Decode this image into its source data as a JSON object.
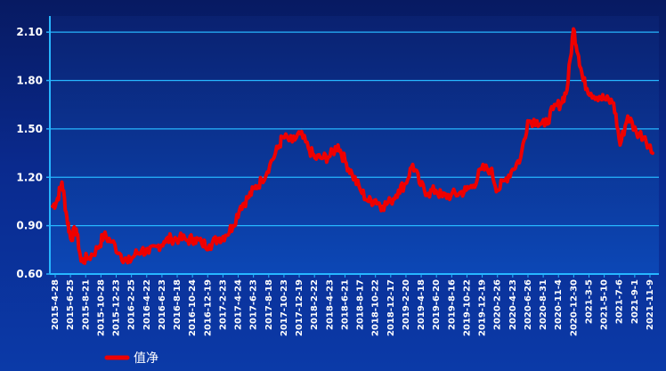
{
  "chart_data": {
    "type": "line",
    "title": "",
    "xlabel": "",
    "ylabel": "",
    "ylim": [
      0.6,
      2.2
    ],
    "y_ticks": [
      "0.60",
      "0.90",
      "1.20",
      "1.50",
      "1.80",
      "2.10"
    ],
    "y_tick_values": [
      0.6,
      0.9,
      1.2,
      1.5,
      1.8,
      2.1
    ],
    "grid": "horizontal",
    "legend": {
      "position": "bottom-left",
      "label": "值净"
    },
    "x_ticks": [
      "2015-4-28",
      "2015-6-25",
      "2015-8-21",
      "2015-10-28",
      "2015-12-23",
      "2016-2-25",
      "2016-4-22",
      "2016-6-23",
      "2016-8-18",
      "2016-10-24",
      "2016-12-19",
      "2017-2-23",
      "2017-4-24",
      "2017-6-23",
      "2017-8-18",
      "2017-10-23",
      "2017-12-19",
      "2018-2-22",
      "2018-4-23",
      "2018-6-21",
      "2018-8-17",
      "2018-10-22",
      "2018-12-17",
      "2019-2-20",
      "2019-4-18",
      "2019-6-20",
      "2019-8-16",
      "2019-10-22",
      "2019-12-19",
      "2020-2-26",
      "2020-4-23",
      "2020-6-26",
      "2020-8-31",
      "2020-11-4",
      "2020-12-30",
      "2021-3-5",
      "2021-5-10",
      "2021-7-6",
      "2021-9-1",
      "2021-11-9"
    ],
    "series": [
      {
        "name": "值净",
        "color": "#ee0000",
        "x": [
          "2015-4-28",
          "2015-5-15",
          "2015-6-5",
          "2015-6-25",
          "2015-7-10",
          "2015-8-1",
          "2015-8-21",
          "2015-9-20",
          "2015-10-28",
          "2015-11-20",
          "2015-12-23",
          "2016-1-28",
          "2016-2-25",
          "2016-3-25",
          "2016-4-22",
          "2016-5-20",
          "2016-6-23",
          "2016-7-20",
          "2016-8-18",
          "2016-9-20",
          "2016-10-24",
          "2016-11-20",
          "2016-12-19",
          "2017-1-20",
          "2017-2-23",
          "2017-3-25",
          "2017-4-24",
          "2017-5-25",
          "2017-6-23",
          "2017-7-20",
          "2017-8-18",
          "2017-9-20",
          "2017-10-23",
          "2017-11-10",
          "2017-12-19",
          "2018-1-20",
          "2018-2-22",
          "2018-3-20",
          "2018-4-23",
          "2018-5-20",
          "2018-6-21",
          "2018-7-20",
          "2018-8-17",
          "2018-9-20",
          "2018-10-22",
          "2018-11-20",
          "2018-12-17",
          "2019-1-20",
          "2019-2-20",
          "2019-3-20",
          "2019-4-18",
          "2019-5-20",
          "2019-6-20",
          "2019-7-20",
          "2019-8-16",
          "2019-9-20",
          "2019-10-22",
          "2019-11-20",
          "2019-12-19",
          "2020-1-20",
          "2020-2-26",
          "2020-3-25",
          "2020-4-23",
          "2020-5-25",
          "2020-6-26",
          "2020-7-25",
          "2020-8-31",
          "2020-10-1",
          "2020-11-4",
          "2020-12-5",
          "2020-12-30",
          "2021-1-25",
          "2021-2-15",
          "2021-3-5",
          "2021-4-5",
          "2021-5-10",
          "2021-6-5",
          "2021-7-6",
          "2021-8-1",
          "2021-9-1",
          "2021-10-5",
          "2021-11-9",
          "2021-12-10"
        ],
        "values": [
          1.02,
          1.05,
          1.17,
          0.95,
          0.82,
          0.88,
          0.68,
          0.7,
          0.76,
          0.84,
          0.8,
          0.72,
          0.67,
          0.72,
          0.75,
          0.73,
          0.77,
          0.8,
          0.82,
          0.82,
          0.81,
          0.82,
          0.79,
          0.78,
          0.82,
          0.84,
          0.9,
          1.02,
          1.07,
          1.13,
          1.18,
          1.28,
          1.38,
          1.45,
          1.42,
          1.47,
          1.38,
          1.32,
          1.32,
          1.33,
          1.4,
          1.3,
          1.22,
          1.12,
          1.05,
          1.06,
          1.02,
          1.05,
          1.12,
          1.16,
          1.28,
          1.15,
          1.1,
          1.12,
          1.08,
          1.09,
          1.1,
          1.12,
          1.15,
          1.25,
          1.25,
          1.12,
          1.18,
          1.25,
          1.32,
          1.55,
          1.55,
          1.52,
          1.62,
          1.66,
          1.74,
          2.12,
          1.95,
          1.8,
          1.72,
          1.7,
          1.68,
          1.66,
          1.4,
          1.58,
          1.48,
          1.45,
          1.35
        ]
      }
    ]
  }
}
